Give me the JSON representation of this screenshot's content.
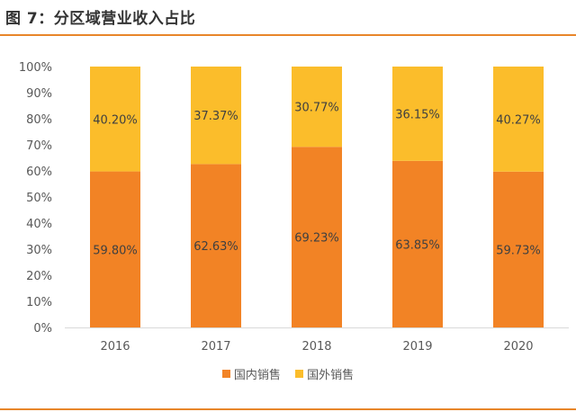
{
  "header": {
    "title": "图 7：分区域营业收入占比"
  },
  "chart_data": {
    "type": "bar",
    "stacked": true,
    "percent": true,
    "categories": [
      "2016",
      "2017",
      "2018",
      "2019",
      "2020"
    ],
    "series": [
      {
        "name": "国内销售",
        "values": [
          59.8,
          62.63,
          69.23,
          63.85,
          59.73
        ],
        "labels": [
          "59.80%",
          "62.63%",
          "69.23%",
          "63.85%",
          "59.73%"
        ],
        "color": "#f28325"
      },
      {
        "name": "国外销售",
        "values": [
          40.2,
          37.37,
          30.77,
          36.15,
          40.27
        ],
        "labels": [
          "40.20%",
          "37.37%",
          "30.77%",
          "36.15%",
          "40.27%"
        ],
        "color": "#fbbd2b"
      }
    ],
    "ylim": [
      0,
      100
    ],
    "yticks": [
      "0%",
      "10%",
      "20%",
      "30%",
      "40%",
      "50%",
      "60%",
      "70%",
      "80%",
      "90%",
      "100%"
    ],
    "grid": false,
    "legend_position": "bottom"
  }
}
